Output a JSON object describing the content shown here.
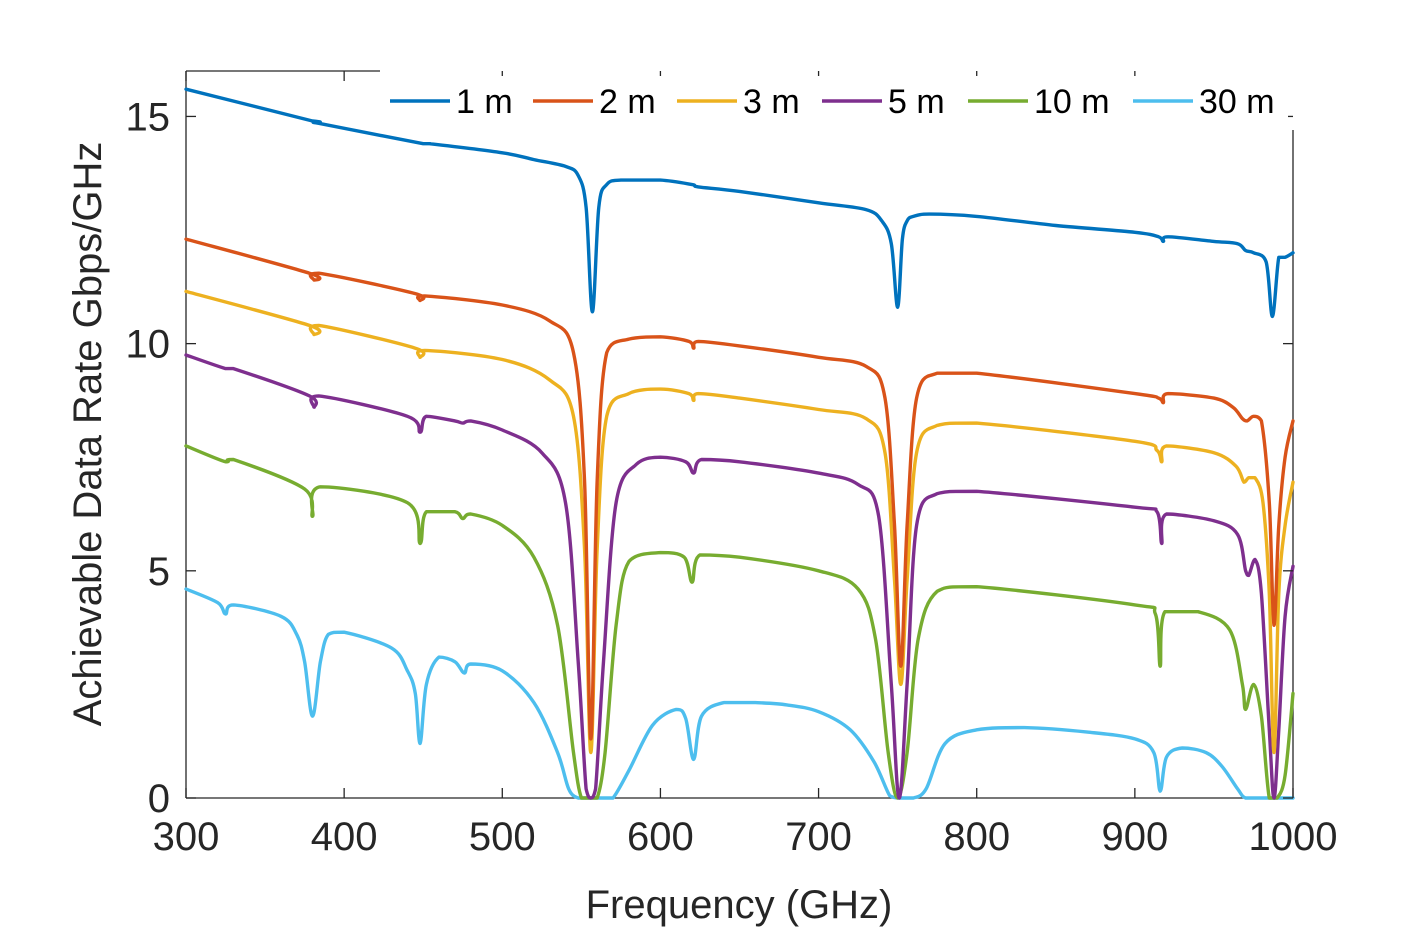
{
  "chart_data": {
    "type": "line",
    "title": "",
    "xlabel": "Frequency (GHz)",
    "ylabel": "Achievable Data Rate Gbps/GHz",
    "xlim": [
      300,
      1000
    ],
    "ylim": [
      0,
      16
    ],
    "xticks": [
      300,
      400,
      500,
      600,
      700,
      800,
      900,
      1000
    ],
    "yticks": [
      0,
      5,
      10,
      15
    ],
    "grid": false,
    "legend_position": "top",
    "series": [
      {
        "name": "1 m",
        "color": "#0072bd",
        "x": [
          300,
          380,
          384,
          450,
          454,
          500,
          520,
          540,
          548,
          553,
          557,
          561,
          566,
          575,
          600,
          620,
          624,
          650,
          700,
          730,
          740,
          746,
          750,
          753,
          756,
          760,
          770,
          800,
          850,
          900,
          915,
          918,
          921,
          950,
          965,
          970,
          975,
          983,
          987,
          991,
          995,
          1000
        ],
        "y": [
          15.6,
          14.9,
          14.85,
          14.4,
          14.4,
          14.2,
          14.05,
          13.9,
          13.7,
          13.0,
          10.7,
          13.0,
          13.5,
          13.6,
          13.6,
          13.5,
          13.45,
          13.35,
          13.1,
          12.95,
          12.7,
          12.2,
          10.8,
          12.3,
          12.7,
          12.8,
          12.85,
          12.8,
          12.6,
          12.45,
          12.35,
          12.25,
          12.35,
          12.25,
          12.2,
          12.05,
          12.0,
          11.8,
          10.6,
          11.9,
          11.9,
          12.0
        ]
      },
      {
        "name": "2 m",
        "color": "#d95319",
        "x": [
          300,
          378,
          381,
          384,
          445,
          448,
          451,
          500,
          530,
          545,
          552,
          556,
          560,
          566,
          580,
          600,
          618,
          621,
          624,
          650,
          700,
          730,
          742,
          748,
          752,
          756,
          762,
          775,
          800,
          900,
          915,
          918,
          921,
          950,
          962,
          968,
          971,
          975,
          980,
          985,
          988,
          991,
          995,
          1000
        ],
        "y": [
          12.3,
          11.55,
          11.4,
          11.55,
          11.1,
          10.95,
          11.05,
          10.85,
          10.5,
          9.8,
          7.0,
          1.3,
          7.0,
          9.8,
          10.1,
          10.15,
          10.05,
          9.9,
          10.05,
          9.95,
          9.7,
          9.5,
          8.8,
          6.0,
          2.9,
          6.0,
          8.8,
          9.35,
          9.35,
          8.9,
          8.8,
          8.7,
          8.9,
          8.8,
          8.6,
          8.35,
          8.3,
          8.4,
          8.3,
          6.5,
          3.8,
          6.0,
          7.5,
          8.3
        ]
      },
      {
        "name": "3 m",
        "color": "#edb120",
        "x": [
          300,
          378,
          381,
          384,
          445,
          448,
          451,
          500,
          530,
          545,
          552,
          556,
          560,
          566,
          580,
          600,
          618,
          621,
          624,
          650,
          700,
          730,
          742,
          748,
          752,
          756,
          762,
          775,
          800,
          900,
          914,
          917,
          920,
          950,
          964,
          969,
          972,
          976,
          981,
          985,
          988,
          991,
          995,
          1000
        ],
        "y": [
          11.15,
          10.4,
          10.2,
          10.4,
          9.9,
          9.7,
          9.85,
          9.65,
          9.2,
          8.4,
          5.5,
          1.0,
          5.5,
          8.4,
          8.9,
          9.0,
          8.9,
          8.75,
          8.9,
          8.8,
          8.55,
          8.35,
          7.6,
          4.8,
          2.5,
          4.8,
          7.6,
          8.2,
          8.25,
          7.85,
          7.65,
          7.4,
          7.75,
          7.6,
          7.3,
          6.95,
          7.05,
          7.05,
          6.5,
          4.5,
          1.0,
          4.5,
          6.0,
          6.95
        ]
      },
      {
        "name": "5 m",
        "color": "#7e2f8e",
        "x": [
          300,
          325,
          330,
          378,
          381,
          384,
          440,
          448,
          452,
          470,
          475,
          480,
          500,
          525,
          540,
          548,
          553,
          556,
          559,
          564,
          572,
          585,
          600,
          616,
          621,
          626,
          650,
          700,
          725,
          738,
          746,
          751,
          756,
          762,
          775,
          800,
          900,
          914,
          917,
          920,
          950,
          965,
          970,
          972,
          976,
          980,
          985,
          988,
          991,
          995,
          1000
        ],
        "y": [
          9.75,
          9.45,
          9.45,
          8.85,
          8.6,
          8.85,
          8.4,
          8.05,
          8.4,
          8.3,
          8.25,
          8.3,
          8.1,
          7.6,
          6.5,
          3.0,
          0.2,
          0.0,
          0.2,
          3.0,
          6.5,
          7.35,
          7.5,
          7.4,
          7.15,
          7.45,
          7.4,
          7.15,
          6.9,
          6.2,
          2.5,
          0.0,
          2.5,
          6.0,
          6.7,
          6.75,
          6.4,
          6.3,
          5.6,
          6.25,
          6.1,
          5.8,
          5.0,
          4.9,
          5.25,
          4.5,
          1.5,
          0.0,
          1.5,
          4.0,
          5.1
        ]
      },
      {
        "name": "10 m",
        "color": "#77ac30",
        "x": [
          300,
          325,
          330,
          375,
          380,
          385,
          440,
          448,
          452,
          470,
          475,
          480,
          500,
          520,
          535,
          545,
          550,
          555,
          560,
          565,
          572,
          580,
          600,
          615,
          620,
          625,
          650,
          700,
          725,
          736,
          744,
          750,
          756,
          763,
          775,
          800,
          900,
          913,
          916,
          919,
          940,
          960,
          968,
          970,
          975,
          980,
          985,
          990,
          995,
          1000
        ],
        "y": [
          7.75,
          7.4,
          7.45,
          6.8,
          6.2,
          6.85,
          6.5,
          5.6,
          6.3,
          6.3,
          6.15,
          6.25,
          6.0,
          5.3,
          3.8,
          1.0,
          0.0,
          0.0,
          0.0,
          1.0,
          3.8,
          5.2,
          5.4,
          5.3,
          4.75,
          5.35,
          5.3,
          5.0,
          4.6,
          3.5,
          1.0,
          0.0,
          1.0,
          3.5,
          4.55,
          4.65,
          4.25,
          4.05,
          2.9,
          4.1,
          4.1,
          3.7,
          2.5,
          1.95,
          2.5,
          1.8,
          0.0,
          0.0,
          0.5,
          2.3
        ]
      },
      {
        "name": "30 m",
        "color": "#4dbeee",
        "x": [
          300,
          320,
          325,
          330,
          360,
          370,
          375,
          380,
          385,
          390,
          400,
          430,
          440,
          445,
          448,
          452,
          460,
          470,
          476,
          480,
          500,
          520,
          535,
          542,
          548,
          555,
          560,
          565,
          570,
          580,
          595,
          610,
          616,
          621,
          626,
          640,
          660,
          680,
          700,
          720,
          735,
          745,
          750,
          755,
          760,
          768,
          780,
          800,
          830,
          870,
          900,
          912,
          916,
          920,
          930,
          945,
          955,
          965,
          970,
          980,
          985,
          990,
          995,
          1000
        ],
        "y": [
          4.6,
          4.3,
          4.05,
          4.25,
          4.0,
          3.6,
          3.0,
          1.8,
          3.0,
          3.6,
          3.65,
          3.3,
          2.8,
          2.3,
          1.2,
          2.5,
          3.1,
          3.0,
          2.75,
          2.95,
          2.8,
          2.1,
          1.0,
          0.2,
          0.0,
          0.0,
          0.0,
          0.0,
          0.0,
          0.6,
          1.6,
          1.95,
          1.75,
          0.85,
          1.8,
          2.1,
          2.1,
          2.05,
          1.9,
          1.5,
          0.8,
          0.05,
          0.0,
          0.0,
          0.0,
          0.2,
          1.2,
          1.5,
          1.55,
          1.45,
          1.3,
          1.0,
          0.15,
          0.9,
          1.1,
          1.0,
          0.7,
          0.2,
          0.0,
          0.0,
          0.0,
          0.0,
          0.0,
          0.0
        ]
      }
    ]
  }
}
